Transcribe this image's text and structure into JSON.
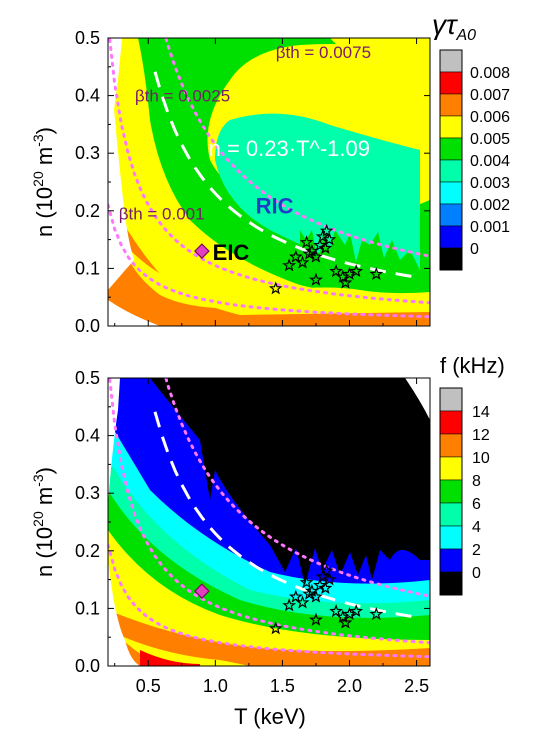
{
  "chart_data": [
    {
      "type": "heatmap",
      "panel": "top",
      "quantity": "growth rate",
      "colorbar_title": "γτ_A0",
      "colorbar_levels": [
        "0.008",
        "0.007",
        "0.006",
        "0.005",
        "0.004",
        "0.003",
        "0.002",
        "0.001",
        "0"
      ],
      "colorbar_colors": [
        "#c0c0c0",
        "#ff0000",
        "#ff8000",
        "#ffff00",
        "#00e000",
        "#00ffaa",
        "#00ffff",
        "#0080ff",
        "#0000ff",
        "#000000"
      ],
      "xlim": [
        0.2,
        2.6
      ],
      "ylim": [
        0.0,
        0.5
      ],
      "xticks": [
        "0.5",
        "1.0",
        "1.5",
        "2.0",
        "2.5"
      ],
      "yticks": [
        "0.0",
        "0.1",
        "0.2",
        "0.3",
        "0.4",
        "0.5"
      ],
      "ylabel": "n (10^20 m^-3)",
      "annotations": {
        "beta1": "βth = 0.001",
        "beta2": "βth = 0.0025",
        "beta3": "βth = 0.0075",
        "fit": "n = 0.23·T^-1.09",
        "ric": "RIC",
        "eic": "EIC"
      },
      "scaling_fit": {
        "a": 0.23,
        "b": -1.09
      },
      "beta_contours": [
        0.001,
        0.0025,
        0.0075
      ],
      "eic_point": {
        "T": 0.9,
        "n": 0.13
      },
      "ric_points": [
        {
          "T": 1.45,
          "n": 0.065
        },
        {
          "T": 1.55,
          "n": 0.105
        },
        {
          "T": 1.6,
          "n": 0.12
        },
        {
          "T": 1.65,
          "n": 0.11
        },
        {
          "T": 1.68,
          "n": 0.145
        },
        {
          "T": 1.7,
          "n": 0.125
        },
        {
          "T": 1.72,
          "n": 0.13
        },
        {
          "T": 1.75,
          "n": 0.12
        },
        {
          "T": 1.75,
          "n": 0.08
        },
        {
          "T": 1.78,
          "n": 0.14
        },
        {
          "T": 1.8,
          "n": 0.155
        },
        {
          "T": 1.82,
          "n": 0.135
        },
        {
          "T": 1.83,
          "n": 0.165
        },
        {
          "T": 1.85,
          "n": 0.15
        },
        {
          "T": 1.9,
          "n": 0.095
        },
        {
          "T": 1.95,
          "n": 0.085
        },
        {
          "T": 1.97,
          "n": 0.075
        },
        {
          "T": 2.0,
          "n": 0.09
        },
        {
          "T": 2.05,
          "n": 0.095
        },
        {
          "T": 2.2,
          "n": 0.09
        }
      ]
    },
    {
      "type": "heatmap",
      "panel": "bottom",
      "quantity": "frequency",
      "colorbar_title": "f (kHz)",
      "colorbar_levels": [
        "14",
        "12",
        "10",
        "8",
        "6",
        "4",
        "2",
        "0"
      ],
      "colorbar_colors": [
        "#c0c0c0",
        "#ff0000",
        "#ff8000",
        "#ffff00",
        "#00e000",
        "#00ffaa",
        "#00ffff",
        "#0000ff",
        "#000000"
      ],
      "xlim": [
        0.2,
        2.6
      ],
      "ylim": [
        0.0,
        0.5
      ],
      "xticks": [
        "0.5",
        "1.0",
        "1.5",
        "2.0",
        "2.5"
      ],
      "yticks": [
        "0.0",
        "0.1",
        "0.2",
        "0.3",
        "0.4",
        "0.5"
      ],
      "xlabel": "T (keV)",
      "ylabel": "n (10^20 m^-3)"
    }
  ]
}
